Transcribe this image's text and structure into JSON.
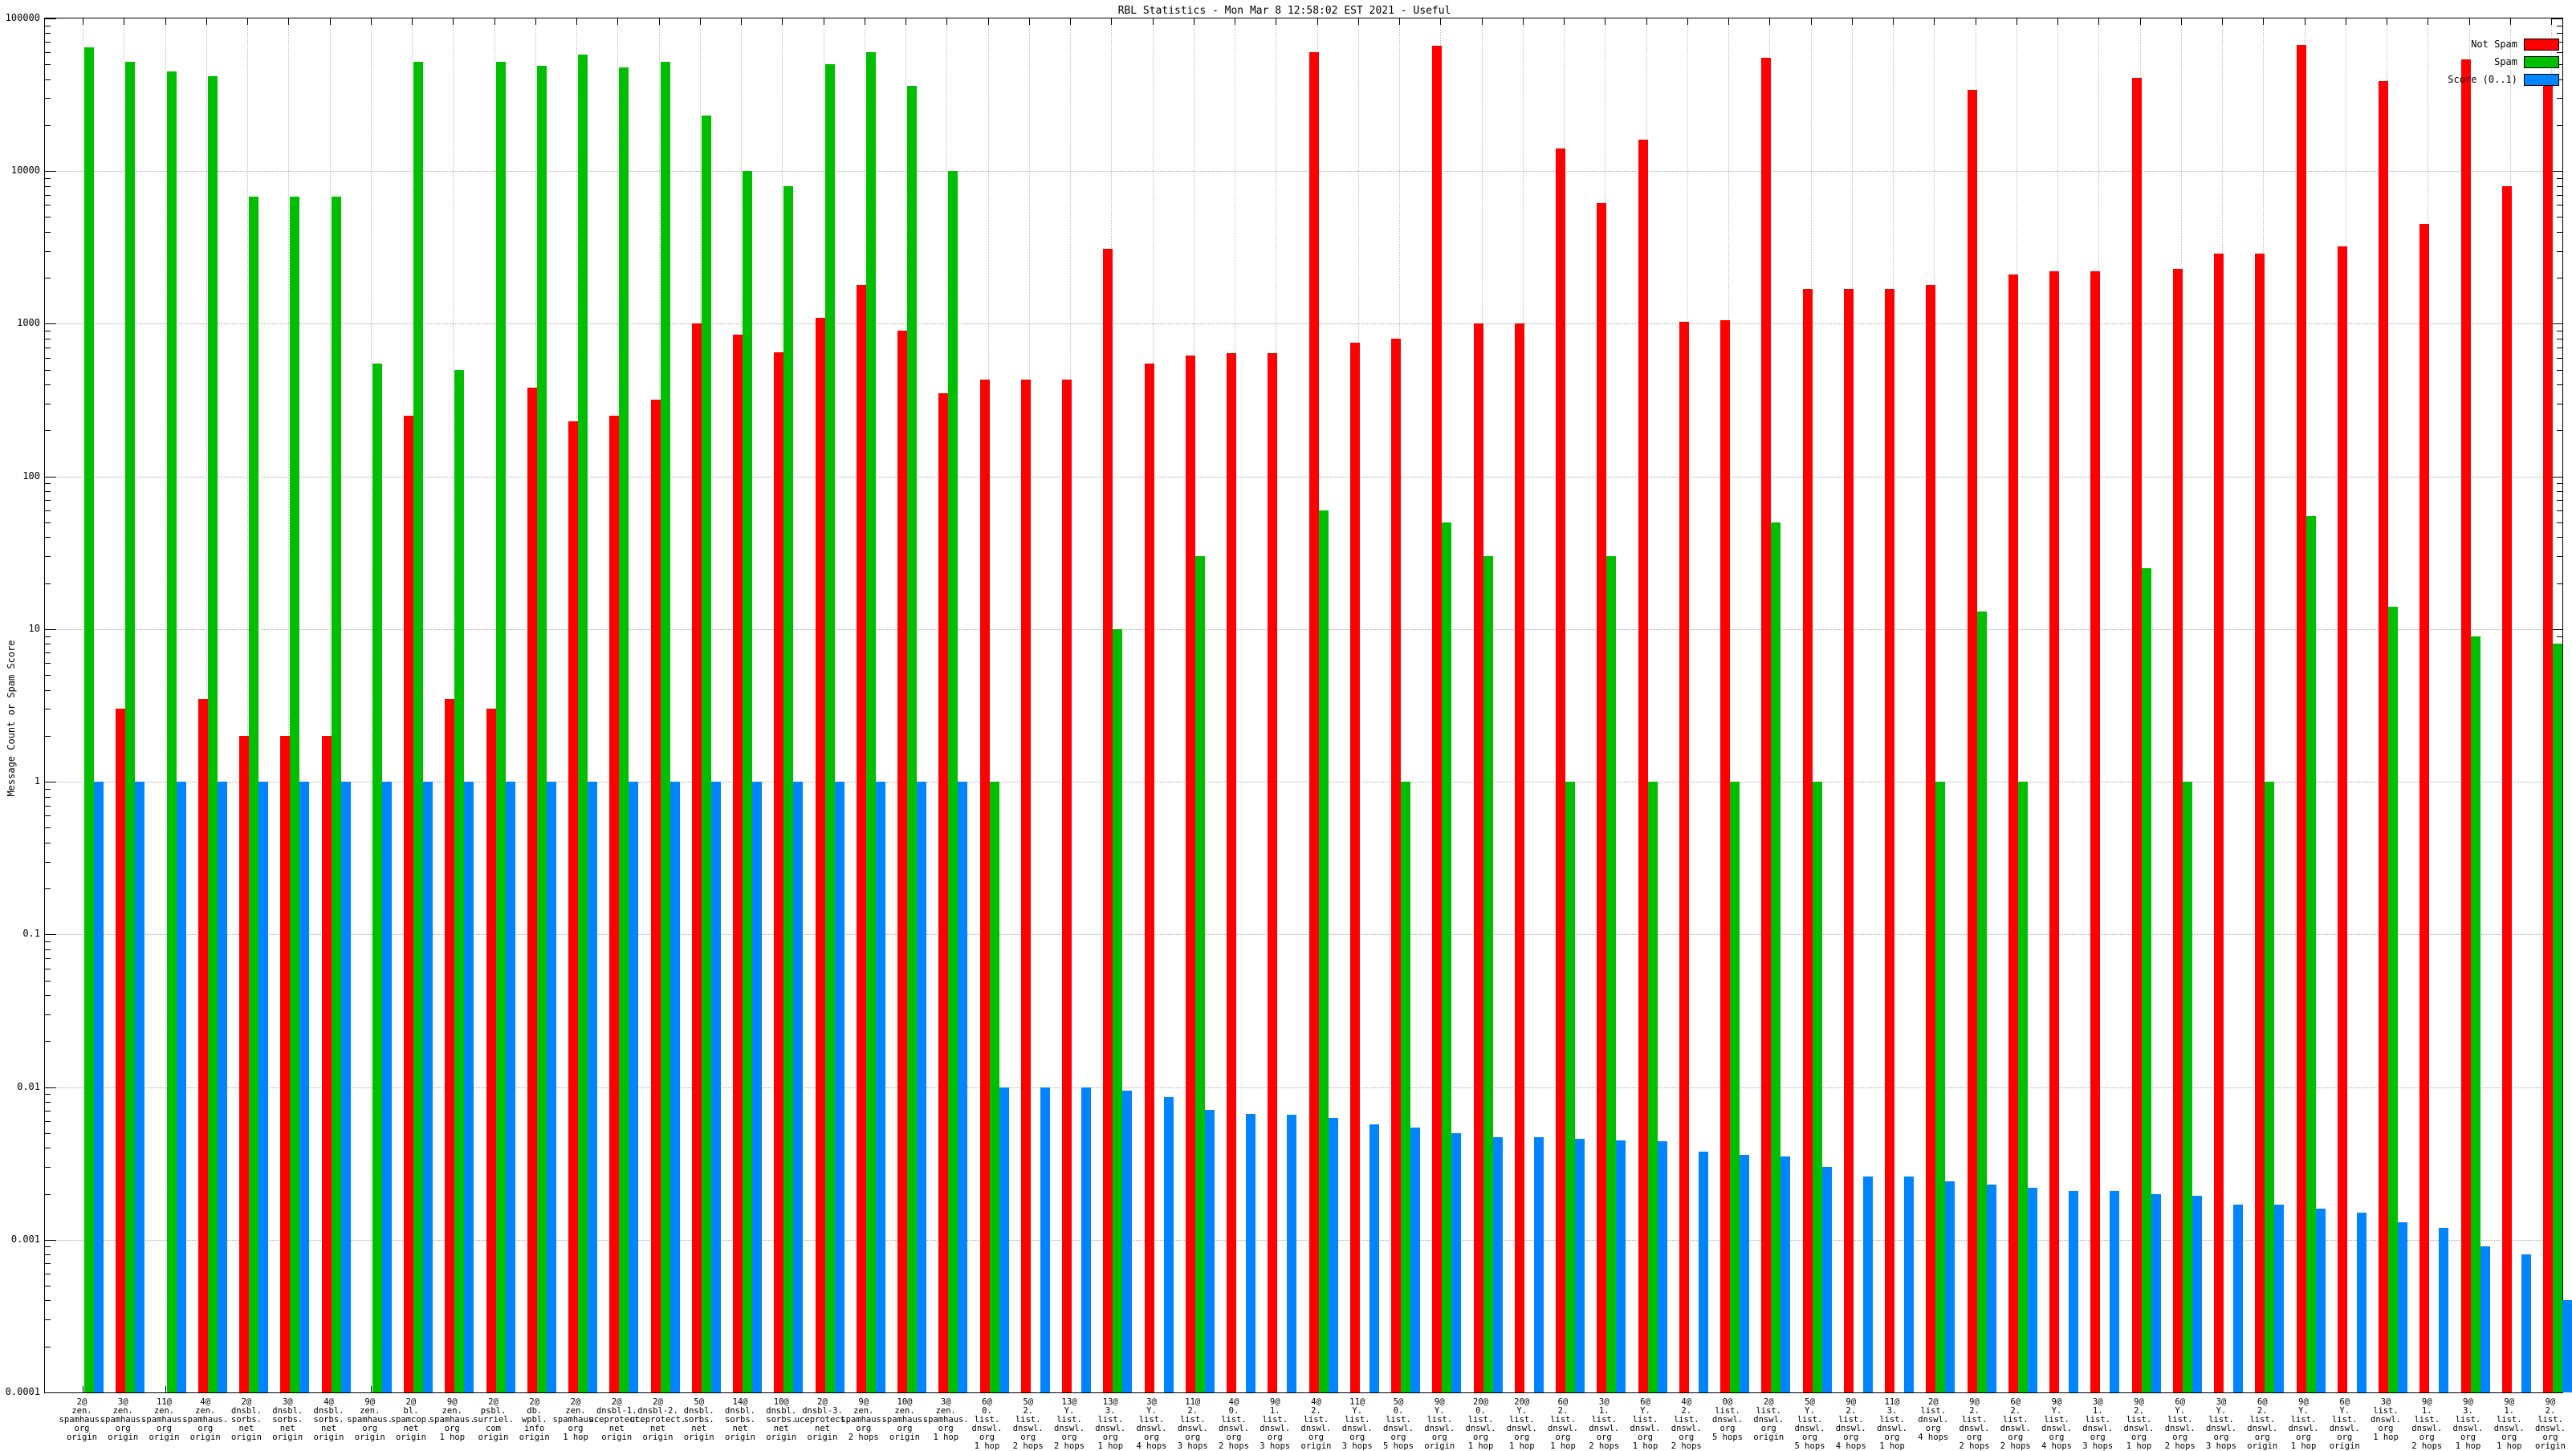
{
  "title": "RBL Statistics - Mon Mar  8 12:58:02 EST 2021 - Useful",
  "y_axis": {
    "label": "Message Count or Spam Score",
    "scale": "log10",
    "min": 0.0001,
    "max": 100000,
    "tick_labels": [
      "100000",
      "10000",
      "1000",
      "100",
      "10",
      "1",
      "0.1",
      "0.01",
      "0.001",
      "0.0001"
    ]
  },
  "legend": {
    "position": "top-right",
    "items": [
      {
        "label": "Not Spam",
        "color": "#ff0000"
      },
      {
        "label": "Spam",
        "color": "#00bf00"
      },
      {
        "label": "Score (0..1)",
        "color": "#0084ff"
      }
    ]
  },
  "chart_data": {
    "type": "bar",
    "grid": true,
    "ylim": [
      0.0001,
      100000
    ],
    "series_names": [
      "Not Spam",
      "Spam",
      "Score (0..1)"
    ],
    "series_keys": [
      "not_spam",
      "spam",
      "score"
    ],
    "groups": [
      {
        "lines": [
          "2@",
          "zen.",
          "spamhaus.",
          "org",
          "origin"
        ],
        "not_spam": 0,
        "spam": 65000,
        "score": 1
      },
      {
        "lines": [
          "3@",
          "zen.",
          "spamhaus.",
          "org",
          "origin"
        ],
        "not_spam": 3,
        "spam": 52000,
        "score": 1
      },
      {
        "lines": [
          "11@",
          "zen.",
          "spamhaus.",
          "org",
          "origin"
        ],
        "not_spam": 0,
        "spam": 45000,
        "score": 1
      },
      {
        "lines": [
          "4@",
          "zen.",
          "spamhaus.",
          "org",
          "origin"
        ],
        "not_spam": 3.5,
        "spam": 42000,
        "score": 1
      },
      {
        "lines": [
          "2@",
          "dnsbl.",
          "sorbs.",
          "net",
          "origin"
        ],
        "not_spam": 2,
        "spam": 6800,
        "score": 1
      },
      {
        "lines": [
          "3@",
          "dnsbl.",
          "sorbs.",
          "net",
          "origin"
        ],
        "not_spam": 2,
        "spam": 6800,
        "score": 1
      },
      {
        "lines": [
          "4@",
          "dnsbl.",
          "sorbs.",
          "net",
          "origin"
        ],
        "not_spam": 2,
        "spam": 6800,
        "score": 1
      },
      {
        "lines": [
          "9@",
          "zen.",
          "spamhaus.",
          "org",
          "origin"
        ],
        "not_spam": 0,
        "spam": 550,
        "score": 1
      },
      {
        "lines": [
          "2@",
          "bl.",
          "spamcop.",
          "net",
          "origin"
        ],
        "not_spam": 250,
        "spam": 52000,
        "score": 1
      },
      {
        "lines": [
          "9@",
          "zen.",
          "spamhaus.",
          "org",
          "1 hop"
        ],
        "not_spam": 3.5,
        "spam": 500,
        "score": 1
      },
      {
        "lines": [
          "2@",
          "psbl.",
          "surriel.",
          "com",
          "origin"
        ],
        "not_spam": 3,
        "spam": 52000,
        "score": 1
      },
      {
        "lines": [
          "2@",
          "db.",
          "wpbl.",
          "info",
          "origin"
        ],
        "not_spam": 380,
        "spam": 49000,
        "score": 1
      },
      {
        "lines": [
          "2@",
          "zen.",
          "spamhaus.",
          "org",
          "1 hop"
        ],
        "not_spam": 230,
        "spam": 58000,
        "score": 1
      },
      {
        "lines": [
          "2@",
          "dnsbl-1.",
          "uceprotect.",
          "net",
          "origin"
        ],
        "not_spam": 250,
        "spam": 48000,
        "score": 1
      },
      {
        "lines": [
          "2@",
          "dnsbl-2.",
          "uceprotect.",
          "net",
          "origin"
        ],
        "not_spam": 320,
        "spam": 52000,
        "score": 1
      },
      {
        "lines": [
          "5@",
          "dnsbl.",
          "sorbs.",
          "net",
          "origin"
        ],
        "not_spam": 1000,
        "spam": 23000,
        "score": 1
      },
      {
        "lines": [
          "14@",
          "dnsbl.",
          "sorbs.",
          "net",
          "origin"
        ],
        "not_spam": 850,
        "spam": 10000,
        "score": 1
      },
      {
        "lines": [
          "10@",
          "dnsbl.",
          "sorbs.",
          "net",
          "origin"
        ],
        "not_spam": 650,
        "spam": 8000,
        "score": 1
      },
      {
        "lines": [
          "2@",
          "dnsbl-3.",
          "uceprotect.",
          "net",
          "origin"
        ],
        "not_spam": 1100,
        "spam": 50000,
        "score": 1
      },
      {
        "lines": [
          "9@",
          "zen.",
          "spamhaus.",
          "org",
          "2 hops"
        ],
        "not_spam": 1800,
        "spam": 60000,
        "score": 1
      },
      {
        "lines": [
          "10@",
          "zen.",
          "spamhaus.",
          "org",
          "origin"
        ],
        "not_spam": 900,
        "spam": 36000,
        "score": 1
      },
      {
        "lines": [
          "3@",
          "zen.",
          "spamhaus.",
          "org",
          "1 hop"
        ],
        "not_spam": 350,
        "spam": 10000,
        "score": 1
      },
      {
        "lines": [
          "6@",
          "0.",
          "list.",
          "dnswl.",
          "org",
          "1 hop"
        ],
        "not_spam": 430,
        "spam": 1,
        "score": 0.01
      },
      {
        "lines": [
          "5@",
          "2.",
          "list.",
          "dnswl.",
          "org",
          "2 hops"
        ],
        "not_spam": 430,
        "spam": 0,
        "score": 0.01
      },
      {
        "lines": [
          "13@",
          "Y.",
          "list.",
          "dnswl.",
          "org",
          "2 hops"
        ],
        "not_spam": 430,
        "spam": 0,
        "score": 0.01
      },
      {
        "lines": [
          "13@",
          "3.",
          "list.",
          "dnswl.",
          "org",
          "1 hop"
        ],
        "not_spam": 3100,
        "spam": 10,
        "score": 0.0095
      },
      {
        "lines": [
          "3@",
          "Y.",
          "list.",
          "dnswl.",
          "org",
          "4 hops"
        ],
        "not_spam": 550,
        "spam": 0,
        "score": 0.0086
      },
      {
        "lines": [
          "11@",
          "2.",
          "list.",
          "dnswl.",
          "org",
          "3 hops"
        ],
        "not_spam": 620,
        "spam": 30,
        "score": 0.0071
      },
      {
        "lines": [
          "4@",
          "0.",
          "list.",
          "dnswl.",
          "org",
          "2 hops"
        ],
        "not_spam": 640,
        "spam": 0,
        "score": 0.0067
      },
      {
        "lines": [
          "9@",
          "1.",
          "list.",
          "dnswl.",
          "org",
          "3 hops"
        ],
        "not_spam": 640,
        "spam": 0,
        "score": 0.0066
      },
      {
        "lines": [
          "4@",
          "2.",
          "list.",
          "dnswl.",
          "org",
          "origin"
        ],
        "not_spam": 60000,
        "spam": 60,
        "score": 0.0063
      },
      {
        "lines": [
          "11@",
          "Y.",
          "list.",
          "dnswl.",
          "org",
          "3 hops"
        ],
        "not_spam": 750,
        "spam": 0,
        "score": 0.0057
      },
      {
        "lines": [
          "5@",
          "0.",
          "list.",
          "dnswl.",
          "org",
          "5 hops"
        ],
        "not_spam": 800,
        "spam": 1,
        "score": 0.0054
      },
      {
        "lines": [
          "9@",
          "Y.",
          "list.",
          "dnswl.",
          "org",
          "origin"
        ],
        "not_spam": 66000,
        "spam": 50,
        "score": 0.005
      },
      {
        "lines": [
          "20@",
          "0.",
          "list.",
          "dnswl.",
          "org",
          "1 hop"
        ],
        "not_spam": 1000,
        "spam": 30,
        "score": 0.0047
      },
      {
        "lines": [
          "20@",
          "Y.",
          "list.",
          "dnswl.",
          "org",
          "1 hop"
        ],
        "not_spam": 1000,
        "spam": 0,
        "score": 0.0047
      },
      {
        "lines": [
          "6@",
          "2.",
          "list.",
          "dnswl.",
          "org",
          "1 hop"
        ],
        "not_spam": 14000,
        "spam": 1,
        "score": 0.0046
      },
      {
        "lines": [
          "3@",
          "1.",
          "list.",
          "dnswl.",
          "org",
          "2 hops"
        ],
        "not_spam": 6200,
        "spam": 30,
        "score": 0.0045
      },
      {
        "lines": [
          "6@",
          "Y.",
          "list.",
          "dnswl.",
          "org",
          "1 hop"
        ],
        "not_spam": 16000,
        "spam": 1,
        "score": 0.0044
      },
      {
        "lines": [
          "4@",
          "2.",
          "list.",
          "dnswl.",
          "org",
          "2 hops"
        ],
        "not_spam": 1030,
        "spam": 0,
        "score": 0.0038
      },
      {
        "lines": [
          "0@",
          "list.",
          "dnswl.",
          "org",
          "5 hops"
        ],
        "not_spam": 1050,
        "spam": 1,
        "score": 0.0036
      },
      {
        "lines": [
          "2@",
          "list.",
          "dnswl.",
          "org",
          "origin"
        ],
        "not_spam": 55000,
        "spam": 50,
        "score": 0.0035
      },
      {
        "lines": [
          "5@",
          "Y.",
          "list.",
          "dnswl.",
          "org",
          "5 hops"
        ],
        "not_spam": 1700,
        "spam": 1,
        "score": 0.003
      },
      {
        "lines": [
          "9@",
          "2.",
          "list.",
          "dnswl.",
          "org",
          "4 hops"
        ],
        "not_spam": 1700,
        "spam": 0,
        "score": 0.0026
      },
      {
        "lines": [
          "11@",
          "3.",
          "list.",
          "dnswl.",
          "org",
          "1 hop"
        ],
        "not_spam": 1700,
        "spam": 0,
        "score": 0.0026
      },
      {
        "lines": [
          "2@",
          "list.",
          "dnswl.",
          "org",
          "4 hops"
        ],
        "not_spam": 1800,
        "spam": 1,
        "score": 0.0024
      },
      {
        "lines": [
          "9@",
          "2.",
          "list.",
          "dnswl.",
          "org",
          "2 hops"
        ],
        "not_spam": 34000,
        "spam": 13,
        "score": 0.0023
      },
      {
        "lines": [
          "6@",
          "2.",
          "list.",
          "dnswl.",
          "org",
          "2 hops"
        ],
        "not_spam": 2100,
        "spam": 1,
        "score": 0.0022
      },
      {
        "lines": [
          "9@",
          "Y.",
          "list.",
          "dnswl.",
          "org",
          "4 hops"
        ],
        "not_spam": 2200,
        "spam": 0,
        "score": 0.0021
      },
      {
        "lines": [
          "3@",
          "1.",
          "list.",
          "dnswl.",
          "org",
          "3 hops"
        ],
        "not_spam": 2200,
        "spam": 0,
        "score": 0.0021
      },
      {
        "lines": [
          "9@",
          "2.",
          "list.",
          "dnswl.",
          "org",
          "1 hop"
        ],
        "not_spam": 41000,
        "spam": 25,
        "score": 0.002
      },
      {
        "lines": [
          "6@",
          "Y.",
          "list.",
          "dnswl.",
          "org",
          "2 hops"
        ],
        "not_spam": 2300,
        "spam": 1,
        "score": 0.00195
      },
      {
        "lines": [
          "3@",
          "Y.",
          "list.",
          "dnswl.",
          "org",
          "3 hops"
        ],
        "not_spam": 2900,
        "spam": 0,
        "score": 0.0017
      },
      {
        "lines": [
          "6@",
          "2.",
          "list.",
          "dnswl.",
          "org",
          "origin"
        ],
        "not_spam": 2900,
        "spam": 1,
        "score": 0.0017
      },
      {
        "lines": [
          "9@",
          "Y.",
          "list.",
          "dnswl.",
          "org",
          "1 hop"
        ],
        "not_spam": 67000,
        "spam": 55,
        "score": 0.0016
      },
      {
        "lines": [
          "6@",
          "Y.",
          "list.",
          "dnswl.",
          "org",
          "origin"
        ],
        "not_spam": 3200,
        "spam": 0,
        "score": 0.0015
      },
      {
        "lines": [
          "3@",
          "list.",
          "dnswl.",
          "org",
          "1 hop"
        ],
        "not_spam": 39000,
        "spam": 14,
        "score": 0.0013
      },
      {
        "lines": [
          "9@",
          "1.",
          "list.",
          "dnswl.",
          "org",
          "2 hops"
        ],
        "not_spam": 4500,
        "spam": 0,
        "score": 0.0012
      },
      {
        "lines": [
          "9@",
          "3.",
          "list.",
          "dnswl.",
          "org",
          "1 hop"
        ],
        "not_spam": 54000,
        "spam": 9,
        "score": 0.0009
      },
      {
        "lines": [
          "9@",
          "1.",
          "list.",
          "dnswl.",
          "org",
          "1 hop"
        ],
        "not_spam": 8000,
        "spam": 0,
        "score": 0.0008
      },
      {
        "lines": [
          "9@",
          "2.",
          "list.",
          "dnswl.",
          "org",
          "origin"
        ],
        "not_spam": 38000,
        "spam": 8,
        "score": 0.0004
      }
    ]
  }
}
